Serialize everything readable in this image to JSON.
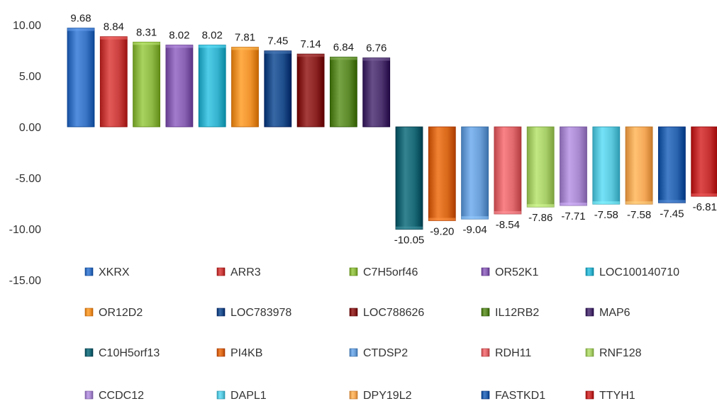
{
  "chart_data": {
    "type": "bar",
    "title": "",
    "xlabel": "",
    "ylabel": "",
    "ylim": [
      -15,
      10
    ],
    "y_ticks": [
      "10.00",
      "5.00",
      "0.00",
      "-5.00",
      "-10.00",
      "-15.00"
    ],
    "grid": false,
    "legend_position": "bottom",
    "categories": [
      "XKRX",
      "ARR3",
      "C7H5orf46",
      "OR52K1",
      "LOC100140710",
      "OR12D2",
      "LOC783978",
      "LOC788626",
      "IL12RB2",
      "MAP6",
      "C10H5orf13",
      "PI4KB",
      "CTDSP2",
      "RDH11",
      "RNF128",
      "CCDC12",
      "DAPL1",
      "DPY19L2",
      "FASTKD1",
      "TTYH1"
    ],
    "values": [
      9.68,
      8.84,
      8.31,
      8.02,
      8.02,
      7.81,
      7.45,
      7.14,
      6.84,
      6.76,
      -10.05,
      -9.2,
      -9.04,
      -8.54,
      -7.86,
      -7.71,
      -7.58,
      -7.58,
      -7.45,
      -6.81
    ],
    "value_labels": [
      "9.68",
      "8.84",
      "8.31",
      "8.02",
      "8.02",
      "7.81",
      "7.45",
      "7.14",
      "6.84",
      "6.76",
      "-10.05",
      "-9.20",
      "-9.04",
      "-8.54",
      "-7.86",
      "-7.71",
      "-7.58",
      "-7.58",
      "-7.45",
      "-6.81"
    ],
    "colors": [
      "#3a74c4",
      "#c9403f",
      "#8fba45",
      "#8a62b4",
      "#36b4cf",
      "#f0932e",
      "#1f4f8c",
      "#8c2424",
      "#5d8a2a",
      "#4e3570",
      "#1a6a78",
      "#d9691a",
      "#6a9fd8",
      "#e0696d",
      "#a8cf6a",
      "#a98ad0",
      "#5cc9df",
      "#f5a959",
      "#2a63ae",
      "#c42f2f"
    ]
  }
}
